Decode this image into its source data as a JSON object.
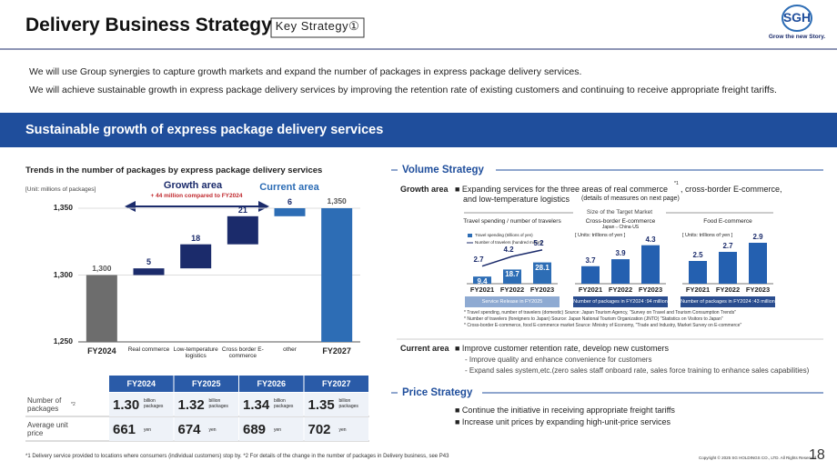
{
  "header": {
    "title": "Delivery Business Strategy",
    "tag": "Key Strategy①",
    "logo": "SGH",
    "tagline": "Grow the new Story."
  },
  "bullets": [
    "We will use Group synergies to capture growth markets and expand the number of packages in express package delivery services.",
    "We will achieve sustainable growth in express package delivery services by improving the retention rate of existing customers and continuing to receive appropriate freight tariffs."
  ],
  "section_title": "Sustainable growth of express package delivery services",
  "chart_data": [
    {
      "type": "waterfall",
      "title": "Trends in the number of packages by express package delivery services",
      "unit": "[Unit: millions of packages]",
      "categories": [
        "FY2024",
        "Real commerce",
        "Low-temperature logistics",
        "Cross border E-commerce",
        "other",
        "FY2027"
      ],
      "values": [
        1300,
        5,
        18,
        21,
        6,
        1350
      ],
      "value_labels": [
        "1,300",
        "5",
        "18",
        "21",
        "6",
        "1,350"
      ],
      "colors": [
        "#6d6d6d",
        "#1b2b6b",
        "#1b2b6b",
        "#1b2b6b",
        "#2d6db5",
        "#2d6db5"
      ],
      "ylim": [
        1250,
        1360
      ],
      "yticks": [
        {
          "value": 1250,
          "label": "1,250"
        },
        {
          "value": 1300,
          "label": "1,300"
        },
        {
          "value": 1350,
          "label": "1,350"
        }
      ],
      "grid": true,
      "annotations": {
        "growth_area": "Growth area",
        "growth_note": "+ 44 million compared to FY2024",
        "current_area": "Current area"
      }
    },
    {
      "type": "combo",
      "title": "Travel spending / number of travelers",
      "categories": [
        "FY2021",
        "FY2022",
        "FY2023"
      ],
      "series": [
        {
          "name": "Travel spending (trillions of yen)",
          "color": "#2d6db5",
          "values": [
            9.4,
            18.7,
            28.1
          ]
        },
        {
          "name": "Number of travelers (hundred million)",
          "color": "#1b2b6b",
          "values": [
            2.7,
            4.2,
            5.2
          ],
          "axis": "y2"
        }
      ],
      "ylim": [
        0,
        60
      ],
      "y2lim": [
        0,
        7
      ],
      "footer": "Service Release in FY2025"
    },
    {
      "type": "bar",
      "title": "Cross-border E-commerce",
      "subtitle": "Japan⇔China·US",
      "unit": "[ Units: trillions of yen ]",
      "categories": [
        "FY2021",
        "FY2022",
        "FY2023"
      ],
      "values": [
        3.7,
        3.9,
        4.3
      ],
      "color": "#2460b0",
      "ylim": [
        3.2,
        4.5
      ],
      "footer": "Number of packages in FY2024 :94 million"
    },
    {
      "type": "bar",
      "title": "Food E-commerce",
      "unit": "[ Units: trillions of yen ]",
      "categories": [
        "FY2021",
        "FY2022",
        "FY2023"
      ],
      "values": [
        2.5,
        2.7,
        2.9
      ],
      "color": "#2460b0",
      "ylim": [
        2,
        3
      ],
      "footer": "Number of packages in FY2024 :43 million"
    }
  ],
  "table": {
    "headers": [
      "FY2024",
      "FY2025",
      "FY2026",
      "FY2027"
    ],
    "rows": [
      {
        "label": "Number of packages",
        "note": "*2",
        "cells": [
          {
            "value": "1.30",
            "unit": "billion packages"
          },
          {
            "value": "1.32",
            "unit": "billion packages"
          },
          {
            "value": "1.34",
            "unit": "billion packages"
          },
          {
            "value": "1.35",
            "unit": "billion packages"
          }
        ]
      },
      {
        "label": "Average unit price",
        "cells": [
          {
            "value": "661",
            "unit": "yen"
          },
          {
            "value": "674",
            "unit": "yen"
          },
          {
            "value": "689",
            "unit": "yen"
          },
          {
            "value": "702",
            "unit": "yen"
          }
        ]
      }
    ]
  },
  "volume": {
    "title": "Volume Strategy",
    "growth_label": "Growth area",
    "growth_text_1": "■ Expanding services for the three areas of real commerce",
    "growth_sup": "*1",
    "growth_text_2": ", cross-border E-commerce,",
    "growth_text_3": "and low-temperature logistics",
    "growth_detail": "(details of measures on next page)",
    "market_title": "Size of the Target Market",
    "notes": [
      "* Travel spending, number of travelers (domestic) Source: Japan Tourism Agency, \"Survey on Travel and Tourism Consumption Trends\"",
      "* Number of travelers (foreigners to Japan) Source: Japan National Tourism Organization (JNTO) \"Statistics on Visitors to Japan\"",
      "* Cross-border E-commerce, food E-commerce market Source: Ministry of Economy, \"Trade and Industry, Market Survey on E-commerce\""
    ],
    "current_label": "Current area",
    "current_main": "■ Improve customer retention rate, develop new customers",
    "current_subs": [
      "- Improve quality and enhance convenience for customers",
      "- Expand sales system,etc.(zero sales staff onboard rate, sales force training to enhance sales capabilities)"
    ]
  },
  "price": {
    "title": "Price Strategy",
    "items": [
      "■ Continue the initiative in receiving appropriate freight tariffs",
      "■ Increase unit prices by expanding high-unit-price services"
    ]
  },
  "footer": {
    "note": "*1 Delivery service provided to locations where consumers (individual customers) stop by. *2 For details of the change in the number of packages in Delivery business, see P43",
    "copyright": "Copyright © 2025 SG HOLDINGS CO., LTD. All Rights Reserved.",
    "page": "18"
  }
}
